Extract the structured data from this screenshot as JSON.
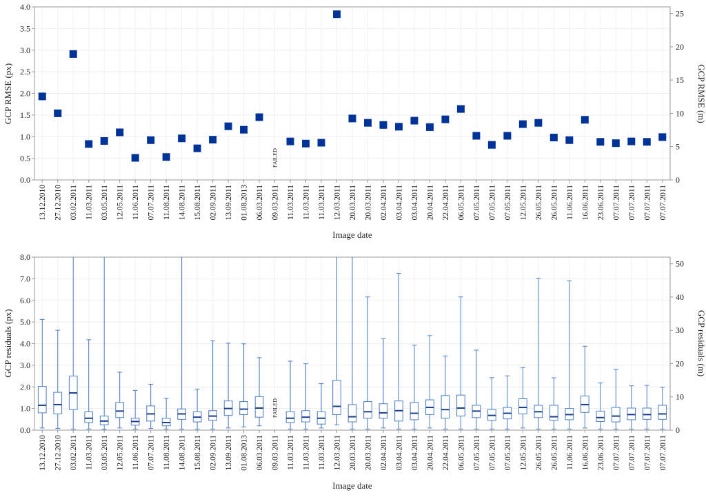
{
  "chart_data": [
    {
      "type": "scatter",
      "xlabel": "Image date",
      "ylabel": "GCP RMSE (px)",
      "ylabel_right": "GCP RMSE (m)",
      "ylim": [
        0,
        4.0
      ],
      "ylim_right": [
        0,
        26.0
      ],
      "yticks": [
        "0.0",
        "0.5",
        "1.0",
        "1.5",
        "2.0",
        "2.5",
        "3.0",
        "3.5",
        "4.0"
      ],
      "yticks_right": [
        "0",
        "5",
        "10",
        "15",
        "20",
        "25"
      ],
      "grid": true,
      "marker_color": "#003399",
      "categories": [
        "13.12.2010",
        "27.12.2010",
        "03.02.2011",
        "11.03.2011",
        "03.05.2011",
        "12.05.2011",
        "11.06.2011",
        "07.07.2011",
        "11.08.2011",
        "14.08.2011",
        "15.08.2011",
        "02.09.2011",
        "13.09.2011",
        "01.08.2013",
        "06.03.2011",
        "09.03.2011",
        "11.03.2011",
        "11.03.2011",
        "11.03.2011",
        "12.03.2011",
        "20.03.2011",
        "20.03.2011",
        "02.04.2011",
        "03.04.2011",
        "03.04.2011",
        "20.04.2011",
        "22.04.2011",
        "06.05.2011",
        "07.05.2011",
        "07.05.2011",
        "07.05.2011",
        "12.05.2011",
        "26.05.2011",
        "26.05.2011",
        "11.06.2011",
        "16.06.2011",
        "23.06.2011",
        "07.07.2011",
        "07.07.2011",
        "07.07.2011",
        "07.07.2011"
      ],
      "values": [
        1.93,
        1.54,
        2.91,
        0.83,
        0.9,
        1.1,
        0.51,
        0.92,
        0.53,
        0.96,
        0.73,
        0.93,
        1.24,
        1.16,
        1.45,
        null,
        0.89,
        0.84,
        0.86,
        3.83,
        1.42,
        1.32,
        1.27,
        1.23,
        1.37,
        1.22,
        1.4,
        1.64,
        1.02,
        0.81,
        1.02,
        1.29,
        1.32,
        0.98,
        0.92,
        1.39,
        0.88,
        0.85,
        0.89,
        0.88,
        0.99
      ],
      "annotations": [
        {
          "category_index": 15,
          "text": "FAILED"
        }
      ]
    },
    {
      "type": "box",
      "xlabel": "Image date",
      "ylabel": "GCP residuals (px)",
      "ylabel_right": "GCP residuals (m)",
      "ylim": [
        0,
        8.0
      ],
      "ylim_right": [
        0,
        52.0
      ],
      "yticks": [
        "0.0",
        "1.0",
        "2.0",
        "3.0",
        "4.0",
        "5.0",
        "6.0",
        "7.0",
        "8.0"
      ],
      "yticks_right": [
        "0",
        "10",
        "20",
        "30",
        "40",
        "50"
      ],
      "grid": true,
      "box_color": "#4a7ec8",
      "median_color": "#1a3f8c",
      "categories": [
        "13.12.2010",
        "27.12.2010",
        "03.02.2011",
        "11.03.2011",
        "03.05.2011",
        "12.05.2011",
        "11.06.2011",
        "07.07.2011",
        "11.08.2011",
        "14.08.2011",
        "15.08.2011",
        "02.09.2011",
        "13.09.2011",
        "01.08.2013",
        "06.03.2011",
        "09.03.2011",
        "11.03.2011",
        "11.03.2011",
        "11.03.2011",
        "12.03.2011",
        "20.03.2011",
        "20.03.2011",
        "02.04.2011",
        "03.04.2011",
        "03.04.2011",
        "20.04.2011",
        "22.04.2011",
        "06.05.2011",
        "07.05.2011",
        "07.05.2011",
        "07.05.2011",
        "12.05.2011",
        "26.05.2011",
        "26.05.2011",
        "11.06.2011",
        "16.06.2011",
        "23.06.2011",
        "07.07.2011",
        "07.07.2011",
        "07.07.2011",
        "07.07.2011"
      ],
      "boxes": [
        {
          "min": 0.1,
          "q1": 0.8,
          "median": 1.15,
          "q3": 2.02,
          "max": 5.12
        },
        {
          "min": 0.08,
          "q1": 0.75,
          "median": 1.18,
          "q3": 1.75,
          "max": 4.62
        },
        {
          "min": 0.05,
          "q1": 0.95,
          "median": 1.72,
          "q3": 2.5,
          "max": 8.0
        },
        {
          "min": 0.05,
          "q1": 0.35,
          "median": 0.55,
          "q3": 0.85,
          "max": 4.18
        },
        {
          "min": 0.03,
          "q1": 0.25,
          "median": 0.42,
          "q3": 0.65,
          "max": 8.0
        },
        {
          "min": 0.1,
          "q1": 0.58,
          "median": 0.88,
          "q3": 1.28,
          "max": 2.68
        },
        {
          "min": 0.05,
          "q1": 0.23,
          "median": 0.4,
          "q3": 0.55,
          "max": 1.84
        },
        {
          "min": 0.08,
          "q1": 0.42,
          "median": 0.75,
          "q3": 1.12,
          "max": 2.12
        },
        {
          "min": 0.05,
          "q1": 0.2,
          "median": 0.35,
          "q3": 0.55,
          "max": 1.47
        },
        {
          "min": 0.05,
          "q1": 0.5,
          "median": 0.75,
          "q3": 0.98,
          "max": 8.0
        },
        {
          "min": 0.05,
          "q1": 0.38,
          "median": 0.6,
          "q3": 0.85,
          "max": 1.9
        },
        {
          "min": 0.05,
          "q1": 0.45,
          "median": 0.65,
          "q3": 0.9,
          "max": 4.13
        },
        {
          "min": 0.1,
          "q1": 0.68,
          "median": 1.0,
          "q3": 1.35,
          "max": 4.02
        },
        {
          "min": 0.15,
          "q1": 0.72,
          "median": 0.97,
          "q3": 1.32,
          "max": 3.99
        },
        {
          "min": 0.2,
          "q1": 0.6,
          "median": 1.02,
          "q3": 1.55,
          "max": 3.35
        },
        null,
        {
          "min": 0.05,
          "q1": 0.35,
          "median": 0.55,
          "q3": 0.85,
          "max": 3.19
        },
        {
          "min": 0.05,
          "q1": 0.38,
          "median": 0.6,
          "q3": 0.9,
          "max": 3.07
        },
        {
          "min": 0.1,
          "q1": 0.28,
          "median": 0.55,
          "q3": 0.85,
          "max": 2.15
        },
        {
          "min": 0.25,
          "q1": 0.72,
          "median": 1.1,
          "q3": 2.3,
          "max": 8.0
        },
        {
          "min": 0.05,
          "q1": 0.38,
          "median": 0.62,
          "q3": 1.18,
          "max": 8.0
        },
        {
          "min": 0.05,
          "q1": 0.55,
          "median": 0.85,
          "q3": 1.32,
          "max": 6.16
        },
        {
          "min": 0.1,
          "q1": 0.55,
          "median": 0.8,
          "q3": 1.22,
          "max": 4.23
        },
        {
          "min": 0.05,
          "q1": 0.42,
          "median": 0.9,
          "q3": 1.35,
          "max": 7.25
        },
        {
          "min": 0.05,
          "q1": 0.48,
          "median": 0.78,
          "q3": 1.28,
          "max": 3.93
        },
        {
          "min": 0.1,
          "q1": 0.72,
          "median": 1.05,
          "q3": 1.4,
          "max": 4.37
        },
        {
          "min": 0.05,
          "q1": 0.55,
          "median": 0.95,
          "q3": 1.6,
          "max": 3.43
        },
        {
          "min": 0.05,
          "q1": 0.65,
          "median": 1.02,
          "q3": 1.62,
          "max": 6.16
        },
        {
          "min": 0.05,
          "q1": 0.58,
          "median": 0.88,
          "q3": 1.15,
          "max": 3.7
        },
        {
          "min": 0.05,
          "q1": 0.45,
          "median": 0.68,
          "q3": 0.95,
          "max": 2.43
        },
        {
          "min": 0.05,
          "q1": 0.52,
          "median": 0.78,
          "q3": 1.05,
          "max": 2.51
        },
        {
          "min": 0.1,
          "q1": 0.75,
          "median": 1.05,
          "q3": 1.45,
          "max": 2.89
        },
        {
          "min": 0.05,
          "q1": 0.58,
          "median": 0.85,
          "q3": 1.15,
          "max": 7.02
        },
        {
          "min": 0.05,
          "q1": 0.45,
          "median": 0.62,
          "q3": 1.15,
          "max": 2.42
        },
        {
          "min": 0.05,
          "q1": 0.48,
          "median": 0.72,
          "q3": 1.0,
          "max": 6.9
        },
        {
          "min": 0.1,
          "q1": 0.82,
          "median": 1.18,
          "q3": 1.58,
          "max": 3.88
        },
        {
          "min": 0.05,
          "q1": 0.4,
          "median": 0.58,
          "q3": 0.88,
          "max": 2.18
        },
        {
          "min": 0.05,
          "q1": 0.38,
          "median": 0.65,
          "q3": 1.05,
          "max": 2.81
        },
        {
          "min": 0.05,
          "q1": 0.48,
          "median": 0.72,
          "q3": 1.02,
          "max": 2.05
        },
        {
          "min": 0.05,
          "q1": 0.5,
          "median": 0.72,
          "q3": 1.02,
          "max": 2.07
        },
        {
          "min": 0.05,
          "q1": 0.5,
          "median": 0.75,
          "q3": 1.15,
          "max": 1.98
        }
      ],
      "annotations": [
        {
          "category_index": 15,
          "text": "FAILED"
        }
      ]
    }
  ]
}
